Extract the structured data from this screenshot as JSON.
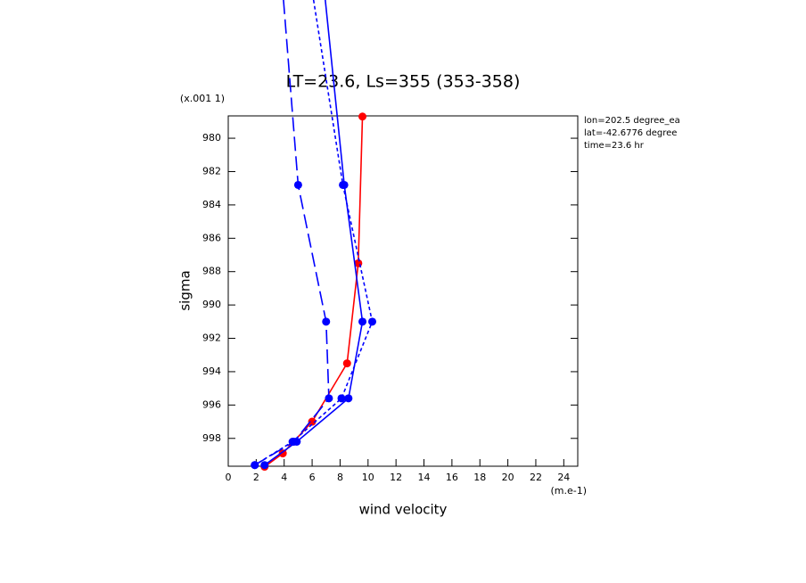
{
  "chart_data": {
    "type": "line",
    "title": "LT=23.6, Ls=355 (353-358)",
    "x_label": "wind velocity",
    "y_label": "sigma",
    "x_unit": "(m.e-1)",
    "y_unit": "(x.001 1)",
    "annotations": [
      "lon=202.5 degree_ea",
      "lat=-42.6776 degree",
      "time=23.6 hr"
    ],
    "xlim": [
      0,
      25
    ],
    "xticks": [
      0,
      2,
      4,
      6,
      8,
      10,
      12,
      14,
      16,
      18,
      20,
      22,
      24
    ],
    "ylim": [
      999.67,
      978.66
    ],
    "yticks": [
      980,
      982,
      984,
      986,
      988,
      990,
      992,
      994,
      996,
      998
    ],
    "series": [
      {
        "color": "#ff0000",
        "dash": "solid",
        "values": [
          9.6,
          9.3,
          8.5,
          6.0,
          3.9,
          2.6
        ],
        "sigma": [
          978.7,
          987.5,
          993.5,
          997.0,
          998.9,
          999.7
        ]
      },
      {
        "color": "#0000ff",
        "dash": "long",
        "values": [
          3.95,
          5.0,
          7.0,
          7.2,
          4.7,
          1.9
        ],
        "sigma": [
          971.7,
          982.8,
          991.0,
          995.6,
          998.2,
          999.6
        ]
      },
      {
        "color": "#0000ff",
        "dash": "solid",
        "values": [
          6.94,
          8.3,
          9.6,
          8.6,
          4.9,
          2.6
        ],
        "sigma": [
          971.7,
          982.8,
          991.0,
          995.6,
          998.2,
          999.6
        ]
      },
      {
        "color": "#0000ff",
        "dash": "short",
        "values": [
          6.1,
          8.2,
          10.3,
          8.1,
          4.6,
          1.9
        ],
        "sigma": [
          971.7,
          982.8,
          991.0,
          995.6,
          998.2,
          999.6
        ]
      }
    ]
  }
}
